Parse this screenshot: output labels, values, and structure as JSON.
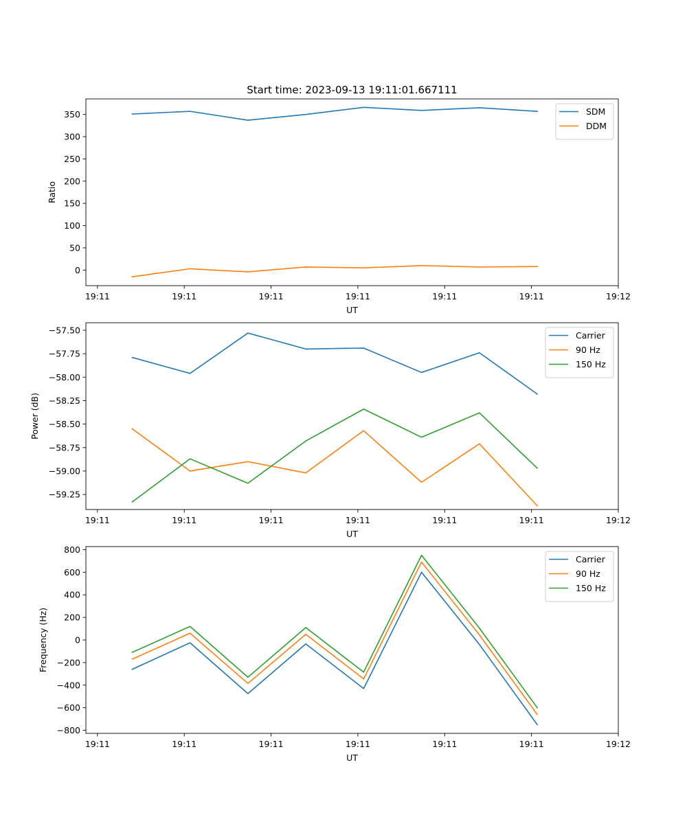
{
  "figure": {
    "title": "Start time: 2023-09-13 19:11:01.667111",
    "colors": {
      "series1": "#1f77b4",
      "series2": "#ff7f0e",
      "series3": "#2ca02c"
    }
  },
  "chart_data": [
    {
      "type": "line",
      "name": "ratio",
      "title": "Start time: 2023-09-13 19:11:01.667111",
      "xlabel": "UT",
      "ylabel": "Ratio",
      "x": [
        1,
        2,
        3,
        4,
        5,
        6,
        7,
        8
      ],
      "xlim": [
        0.2,
        9.4
      ],
      "xticks": [
        0.4,
        1.9,
        3.4,
        4.9,
        6.4,
        7.9,
        9.4
      ],
      "xticklabels": [
        "19:11",
        "19:11",
        "19:11",
        "19:11",
        "19:11",
        "19:11",
        "19:12"
      ],
      "ylim": [
        -35,
        385
      ],
      "yticks": [
        0,
        50,
        100,
        150,
        200,
        250,
        300,
        350
      ],
      "series": [
        {
          "name": "SDM",
          "color": "#1f77b4",
          "values": [
            351,
            357,
            337,
            350,
            366,
            359,
            365,
            357
          ]
        },
        {
          "name": "DDM",
          "color": "#ff7f0e",
          "values": [
            -15,
            3,
            -4,
            7,
            5,
            10,
            7,
            8
          ]
        }
      ],
      "legend": "top-right"
    },
    {
      "type": "line",
      "name": "power",
      "xlabel": "UT",
      "ylabel": "Power (dB)",
      "x": [
        1,
        2,
        3,
        4,
        5,
        6,
        7,
        8
      ],
      "xlim": [
        0.2,
        9.4
      ],
      "xticks": [
        0.4,
        1.9,
        3.4,
        4.9,
        6.4,
        7.9,
        9.4
      ],
      "xticklabels": [
        "19:11",
        "19:11",
        "19:11",
        "19:11",
        "19:11",
        "19:11",
        "19:12"
      ],
      "ylim": [
        -59.41,
        -57.42
      ],
      "yticks": [
        -59.25,
        -59.0,
        -58.75,
        -58.5,
        -58.25,
        -58.0,
        -57.75,
        -57.5
      ],
      "yticklabels": [
        "−59.25",
        "−59.00",
        "−58.75",
        "−58.50",
        "−58.25",
        "−58.00",
        "−57.75",
        "−57.50"
      ],
      "series": [
        {
          "name": "Carrier",
          "color": "#1f77b4",
          "values": [
            -57.79,
            -57.96,
            -57.53,
            -57.7,
            -57.69,
            -57.95,
            -57.74,
            -58.18
          ]
        },
        {
          "name": "90 Hz",
          "color": "#ff7f0e",
          "values": [
            -58.55,
            -59.0,
            -58.9,
            -59.02,
            -58.57,
            -59.12,
            -58.71,
            -59.37
          ]
        },
        {
          "name": "150 Hz",
          "color": "#2ca02c",
          "values": [
            -59.33,
            -58.87,
            -59.13,
            -58.68,
            -58.34,
            -58.64,
            -58.38,
            -58.97
          ]
        }
      ],
      "legend": "top-right"
    },
    {
      "type": "line",
      "name": "frequency",
      "xlabel": "UT",
      "ylabel": "Frequency (Hz)",
      "x": [
        1,
        2,
        3,
        4,
        5,
        6,
        7,
        8
      ],
      "xlim": [
        0.2,
        9.4
      ],
      "xticks": [
        0.4,
        1.9,
        3.4,
        4.9,
        6.4,
        7.9,
        9.4
      ],
      "xticklabels": [
        "19:11",
        "19:11",
        "19:11",
        "19:11",
        "19:11",
        "19:11",
        "19:12"
      ],
      "ylim": [
        -827,
        827
      ],
      "yticks": [
        -800,
        -600,
        -400,
        -200,
        0,
        200,
        400,
        600,
        800
      ],
      "yticklabels": [
        "−800",
        "−600",
        "−400",
        "−200",
        "0",
        "200",
        "400",
        "600",
        "800"
      ],
      "series": [
        {
          "name": "Carrier",
          "color": "#1f77b4",
          "values": [
            -260,
            -25,
            -475,
            -35,
            -430,
            600,
            -40,
            -750
          ]
        },
        {
          "name": "90 Hz",
          "color": "#ff7f0e",
          "values": [
            -170,
            60,
            -385,
            50,
            -345,
            690,
            45,
            -660
          ]
        },
        {
          "name": "150 Hz",
          "color": "#2ca02c",
          "values": [
            -110,
            120,
            -330,
            110,
            -285,
            750,
            105,
            -600
          ]
        }
      ],
      "legend": "top-right"
    }
  ]
}
